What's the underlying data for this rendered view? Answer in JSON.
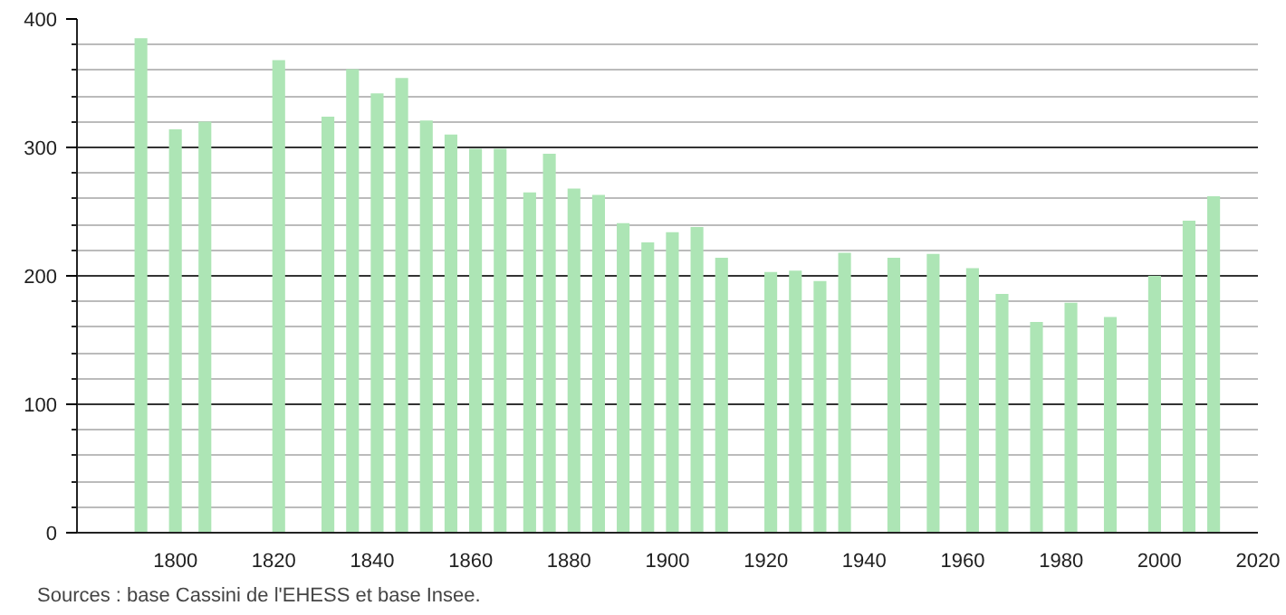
{
  "chart_data": {
    "type": "bar",
    "x": [
      1793,
      1800,
      1806,
      1821,
      1831,
      1836,
      1841,
      1846,
      1851,
      1856,
      1861,
      1866,
      1872,
      1876,
      1881,
      1886,
      1891,
      1896,
      1901,
      1906,
      1911,
      1921,
      1926,
      1931,
      1936,
      1946,
      1954,
      1962,
      1968,
      1975,
      1982,
      1990,
      1999,
      2006,
      2011
    ],
    "values": [
      385,
      314,
      320,
      368,
      324,
      361,
      342,
      354,
      321,
      310,
      299,
      299,
      265,
      295,
      268,
      263,
      241,
      226,
      234,
      238,
      214,
      203,
      204,
      196,
      218,
      214,
      217,
      206,
      186,
      164,
      179,
      168,
      200,
      243,
      262
    ],
    "color": "#ade5b5",
    "xlim": [
      1780,
      2020
    ],
    "xticks": [
      1800,
      1820,
      1840,
      1860,
      1880,
      1900,
      1920,
      1940,
      1960,
      1980,
      2000,
      2020
    ],
    "ylim": [
      0,
      400
    ],
    "yticks": [
      0,
      100,
      200,
      300,
      400
    ],
    "grid": "y",
    "annotations": [
      "Sources : base Cassini de l'EHESS et base Insee."
    ]
  }
}
